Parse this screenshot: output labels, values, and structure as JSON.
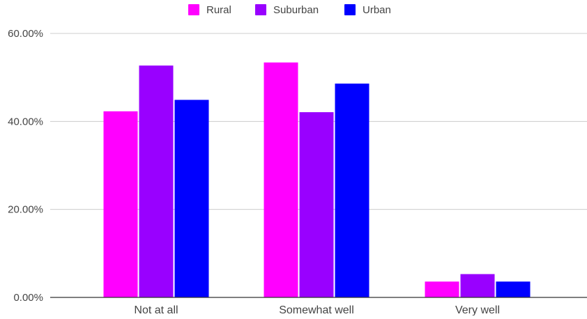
{
  "chart_data": {
    "type": "bar",
    "categories": [
      "Not at all",
      "Somewhat well",
      "Very well"
    ],
    "series": [
      {
        "name": "Rural",
        "color": "#ff00ff",
        "values": [
          42.3,
          53.4,
          3.6
        ]
      },
      {
        "name": "Suburban",
        "color": "#9900ff",
        "values": [
          52.7,
          42.1,
          5.3
        ]
      },
      {
        "name": "Urban",
        "color": "#0000ff",
        "values": [
          44.9,
          48.6,
          3.6
        ]
      }
    ],
    "ylim": [
      0,
      60
    ],
    "yticks": [
      0,
      20,
      40,
      60
    ],
    "ytick_labels": [
      "0.00%",
      "20.00%",
      "40.00%",
      "60.00%"
    ],
    "grid": true,
    "legend_position": "top-center",
    "title": "",
    "xlabel": "",
    "ylabel": ""
  }
}
